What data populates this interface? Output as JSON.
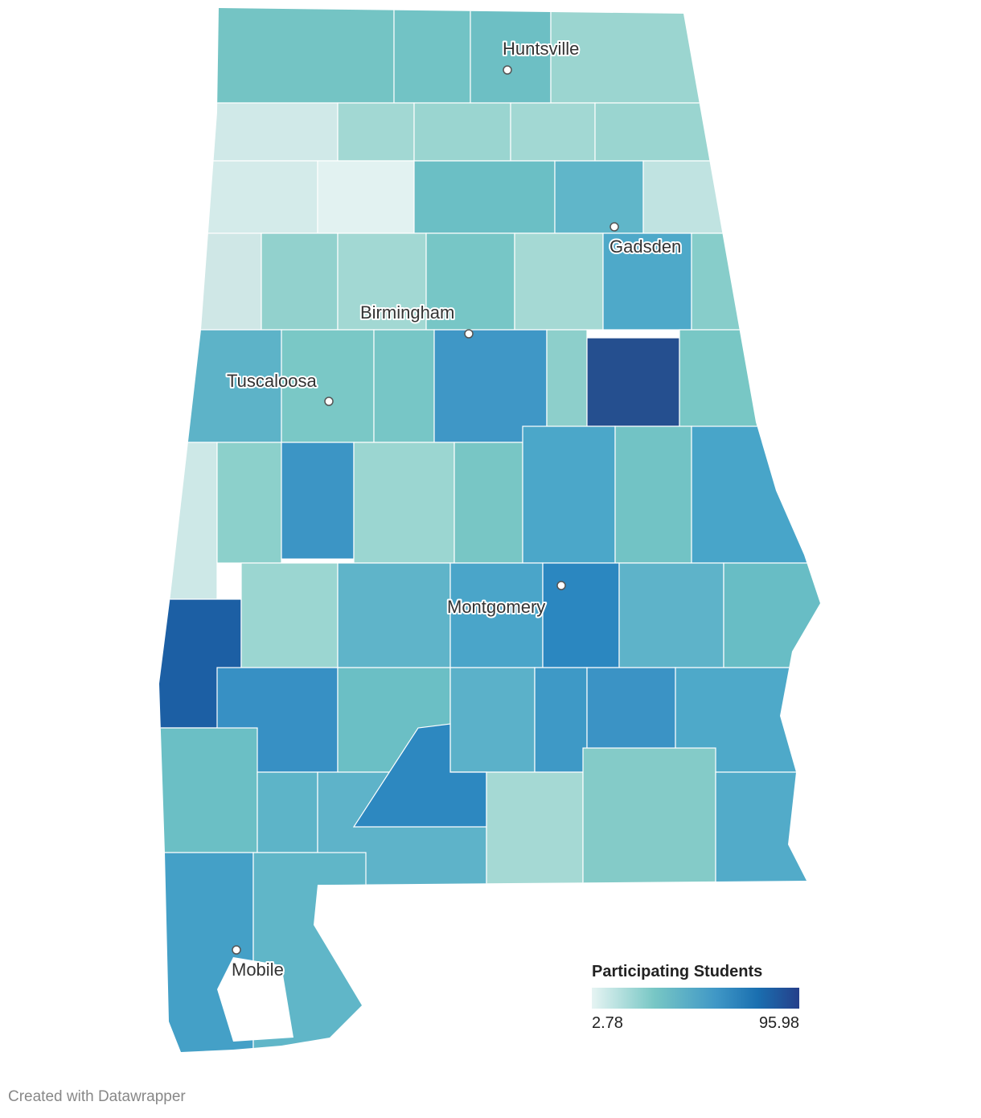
{
  "map": {
    "cities": [
      {
        "name": "Huntsville"
      },
      {
        "name": "Gadsden"
      },
      {
        "name": "Birmingham"
      },
      {
        "name": "Tuscaloosa"
      },
      {
        "name": "Montgomery"
      },
      {
        "name": "Mobile"
      }
    ],
    "legend": {
      "title": "Participating Students",
      "min": 2.78,
      "max": 95.98
    }
  },
  "footer": "Created with Datawrapper"
}
